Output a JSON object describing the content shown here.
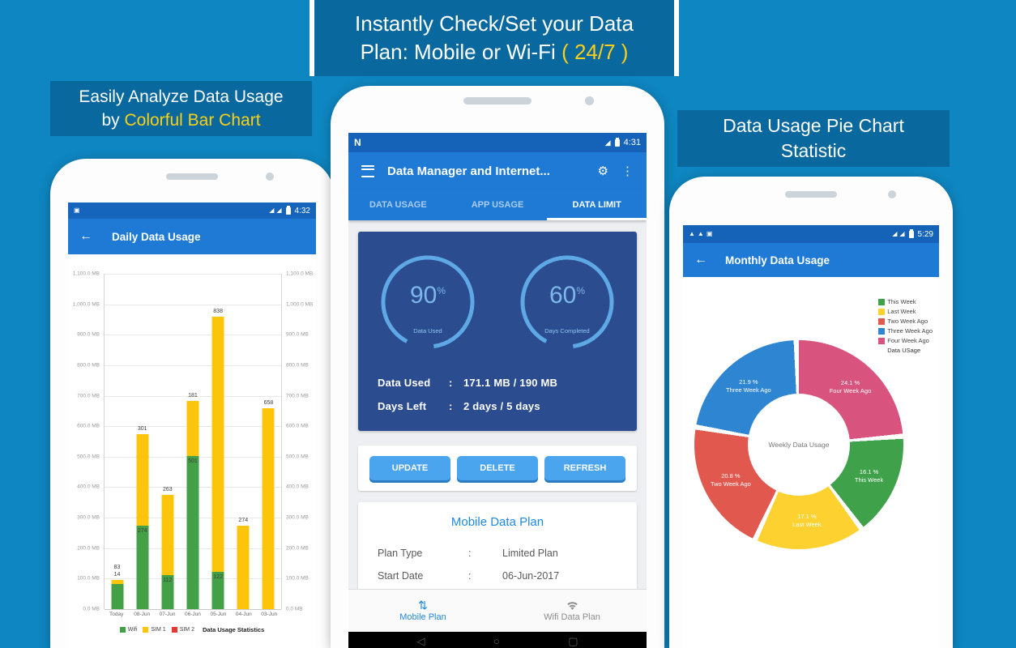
{
  "page": {
    "background": "#0e86c1",
    "band_color": "#09689e",
    "accent_yellow": "#fdd017"
  },
  "headlines": {
    "top_line1": "Instantly Check/Set your Data",
    "top_line2_prefix": "Plan: Mobile or Wi-Fi ",
    "top_line2_highlight": "( 24/7 )",
    "left_line1": "Easily Analyze Data Usage",
    "left_line2_prefix": "by ",
    "left_line2_highlight": "Colorful Bar Chart",
    "right_line1": "Data Usage Pie Chart",
    "right_line2": "Statistic"
  },
  "icons": {
    "back": "←",
    "gear": "⚙",
    "overflow": "⋮",
    "menu": "css-bars",
    "swap_vertical": "⇅",
    "photo": "▣",
    "warning": "▲",
    "signal": "◢",
    "softkey_back": "◁",
    "softkey_home": "○",
    "softkey_recents": "▢"
  },
  "left_phone": {
    "status_time": "4:32",
    "appbar_title": "Daily Data Usage",
    "legend_note": "Data Usage Statistics"
  },
  "middle_phone": {
    "status_left": "N",
    "status_time": "4:31",
    "appbar_title": "Data Manager and Internet...",
    "tabs": [
      {
        "label": "DATA USAGE",
        "active": false
      },
      {
        "label": "APP USAGE",
        "active": false
      },
      {
        "label": "DATA LIMIT",
        "active": true
      }
    ],
    "gauges": [
      {
        "value": "90",
        "suffix": "%",
        "label": "Data Used"
      },
      {
        "value": "60",
        "suffix": "%",
        "label": "Days Completed"
      }
    ],
    "separator": ":",
    "stats": [
      {
        "label": "Data Used",
        "value": "171.1 MB / 190 MB"
      },
      {
        "label": "Days Left",
        "value": "2 days / 5 days"
      }
    ],
    "buttons": [
      "UPDATE",
      "DELETE",
      "REFRESH"
    ],
    "plan": {
      "title": "Mobile Data Plan",
      "rows": [
        {
          "label": "Plan Type",
          "value": "Limited Plan"
        },
        {
          "label": "Start Date",
          "value": "06-Jun-2017"
        }
      ]
    },
    "bottom_nav": [
      {
        "label": "Mobile Plan",
        "active": true
      },
      {
        "label": "Wifi Data Plan",
        "active": false
      }
    ]
  },
  "right_phone": {
    "status_time": "5:29",
    "appbar_title": "Monthly Data Usage",
    "legend_title": "Data USage",
    "center_label": "Weekly Data Usage"
  },
  "chart_data": [
    {
      "type": "bar",
      "title": "Daily Data Usage",
      "stacked": true,
      "unit": "MB",
      "categories": [
        "Today",
        "08-Jun",
        "07-Jun",
        "06-Jun",
        "05-Jun",
        "04-Jun",
        "03-Jun"
      ],
      "series": [
        {
          "name": "Wifi",
          "color": "#43a047",
          "values": [
            83,
            274,
            112,
            501,
            122,
            0,
            0
          ]
        },
        {
          "name": "SIM 1",
          "color": "#fdc40c",
          "values": [
            14,
            301,
            263,
            181,
            838,
            274,
            658
          ]
        },
        {
          "name": "SIM 2",
          "color": "#e53935",
          "values": [
            0,
            0,
            0,
            0,
            0,
            0,
            0
          ]
        }
      ],
      "segment_labels": {
        "top": [
          [
            "83",
            "14"
          ],
          [
            "301"
          ],
          [
            "263"
          ],
          [
            "181"
          ],
          [
            "838"
          ],
          [
            "274"
          ],
          [
            "658"
          ]
        ],
        "mid": [
          null,
          "274",
          "112",
          "501",
          "122",
          null,
          null
        ]
      },
      "ylim": [
        0,
        1100
      ],
      "y_ticks": [
        "1,100.0 MB",
        "1,000.0 MB",
        "900.0 MB",
        "800.0 MB",
        "700.0 MB",
        "600.0 MB",
        "500.0 MB",
        "400.0 MB",
        "300.0 MB",
        "200.0 MB",
        "100.0 MB",
        "0.0 MB"
      ],
      "grid": true,
      "legend_position": "bottom"
    },
    {
      "type": "pie",
      "donut": true,
      "title": "Weekly Data Usage",
      "labels": [
        "Four Week Ago",
        "This Week",
        "Last Week",
        "Two Week Ago",
        "Three Week Ago"
      ],
      "values": [
        24.1,
        16.1,
        17.1,
        20.8,
        21.9
      ],
      "colors": [
        "#d8537e",
        "#3fa24b",
        "#fdd230",
        "#e1584e",
        "#2e86d2"
      ],
      "value_suffix": " %",
      "legend_order": [
        "This Week",
        "Last Week",
        "Two Week Ago",
        "Three Week Ago",
        "Four Week Ago"
      ],
      "legend_position": "top-right"
    }
  ]
}
